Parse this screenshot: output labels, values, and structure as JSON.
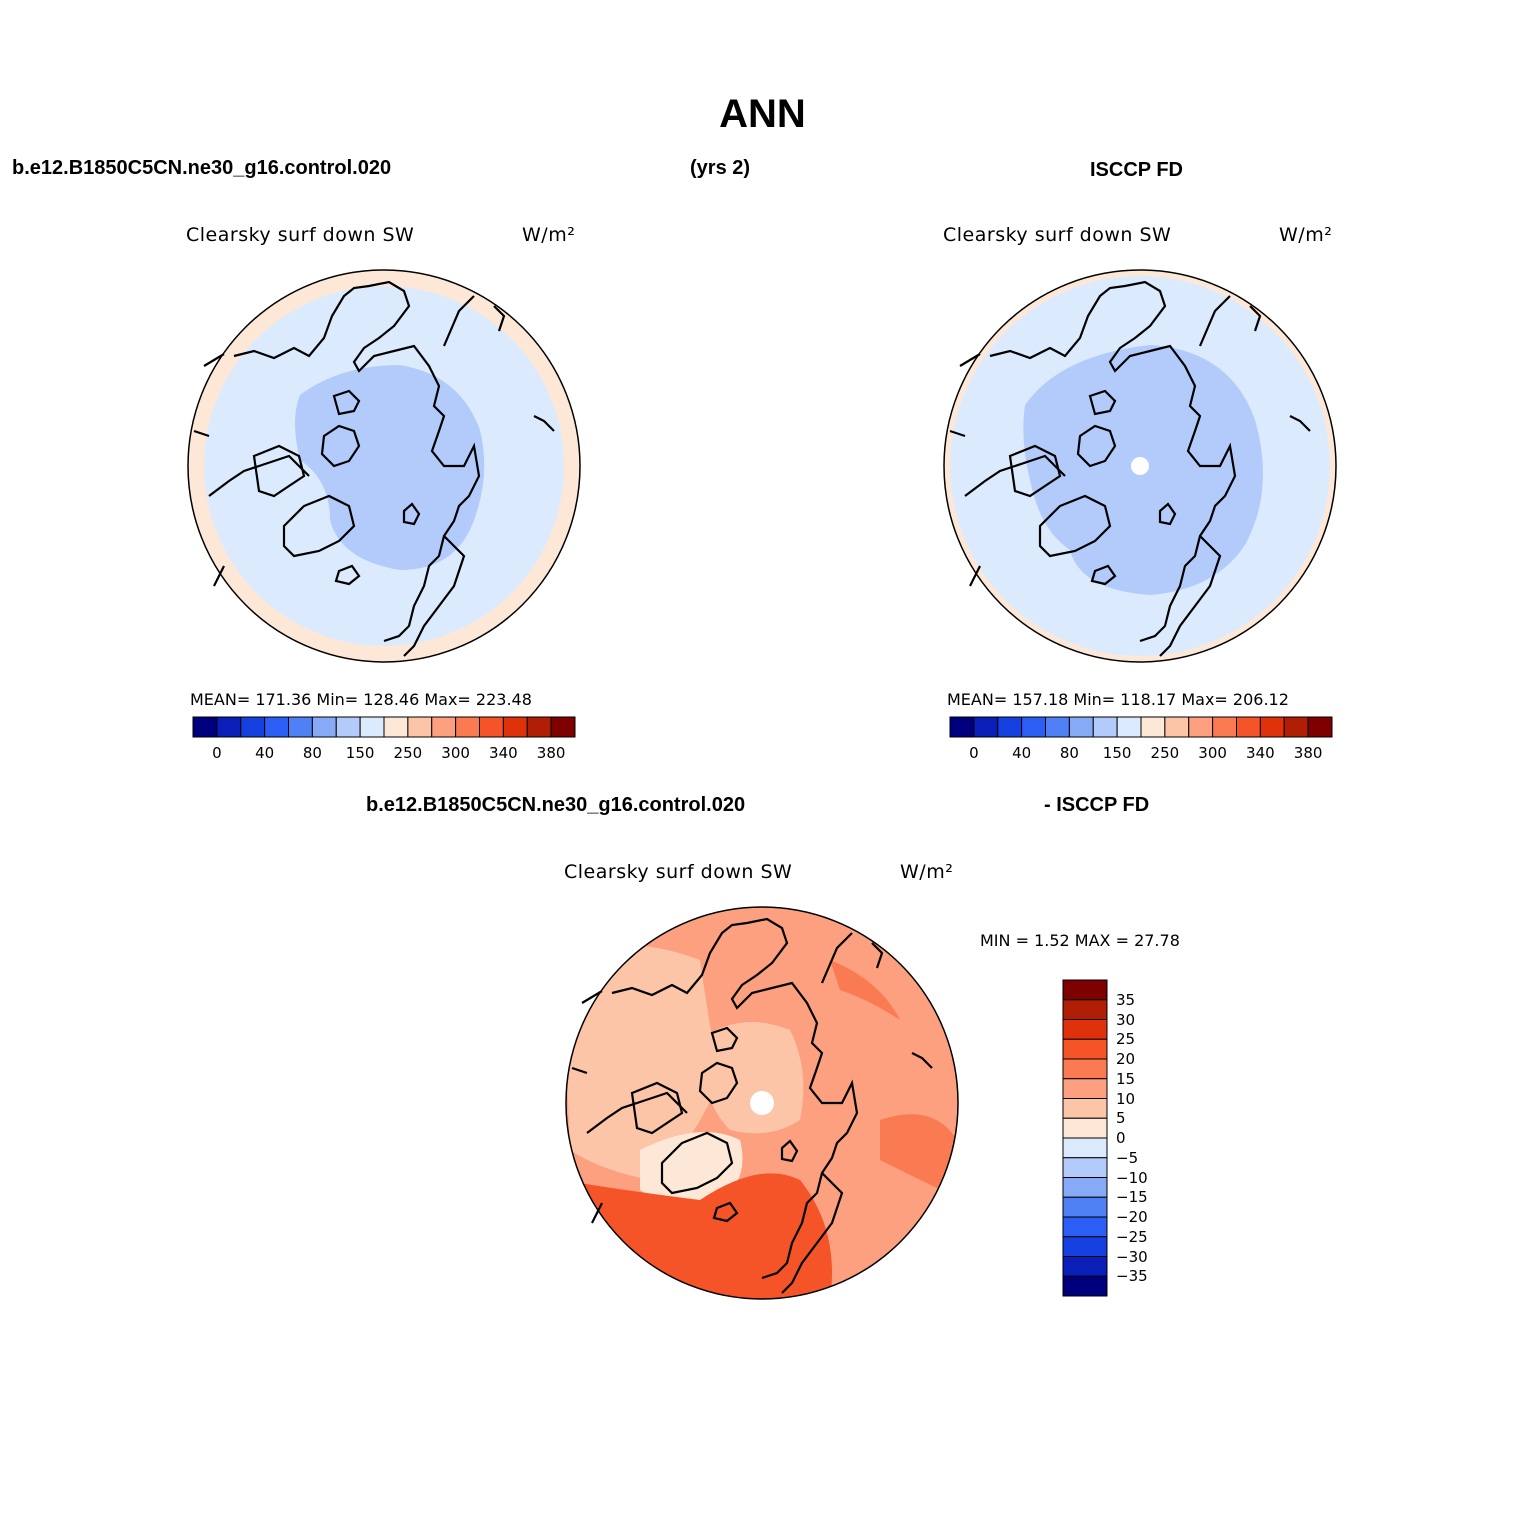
{
  "page_title": "ANN",
  "top_headers": {
    "case_name": "b.e12.B1850C5CN.ne30_g16.control.020",
    "years": "(yrs 2)",
    "obs_name": "ISCCP FD"
  },
  "diff_headers": {
    "case_name": "b.e12.B1850C5CN.ne30_g16.control.020",
    "obs_name": "- ISCCP FD"
  },
  "panels": [
    {
      "variable": "Clearsky surf down SW",
      "units": "W/m²",
      "stats": "MEAN= 171.36   Min= 128.46   Max= 223.48"
    },
    {
      "variable": "Clearsky surf down SW",
      "units": "W/m²",
      "stats": "MEAN= 157.18   Min= 118.17   Max= 206.12"
    },
    {
      "variable": "Clearsky surf down SW",
      "units": "W/m²",
      "stats": "MIN =    1.52  MAX =   27.78"
    }
  ],
  "colorbar_horizontal": {
    "colors": [
      "#00007f",
      "#0a1fb8",
      "#1540e0",
      "#2a5ef5",
      "#4f80f5",
      "#87aaf7",
      "#b3cbfa",
      "#dbebfd",
      "#fde8d8",
      "#fcc5a8",
      "#fca07f",
      "#fa7a52",
      "#f55428",
      "#e0320a",
      "#b01e05",
      "#7f0000"
    ],
    "tick_labels": [
      "0",
      "40",
      "80",
      "150",
      "250",
      "300",
      "340",
      "380"
    ]
  },
  "colorbar_vertical": {
    "colors": [
      "#7f0000",
      "#b01e05",
      "#e0320a",
      "#f55428",
      "#fa7a52",
      "#fca07f",
      "#fcc5a8",
      "#fde8d8",
      "#dbebfd",
      "#b3cbfa",
      "#87aaf7",
      "#4f80f5",
      "#2a5ef5",
      "#1540e0",
      "#0a1fb8",
      "#00007f"
    ],
    "tick_labels": [
      "35",
      "30",
      "25",
      "20",
      "15",
      "10",
      "5",
      "0",
      "−5",
      "−10",
      "−15",
      "−20",
      "−25",
      "−30",
      "−35"
    ]
  },
  "map_colors": {
    "pale_orange": "#fde8d8",
    "pale_blue": "#dbebfd",
    "light_blue": "#b3cbfa",
    "salmon_light": "#fcc5a8",
    "salmon": "#fca07f",
    "orange": "#fa7a52",
    "red_orange": "#f55428",
    "missing": "#ffffff",
    "coastline": "#000000"
  }
}
